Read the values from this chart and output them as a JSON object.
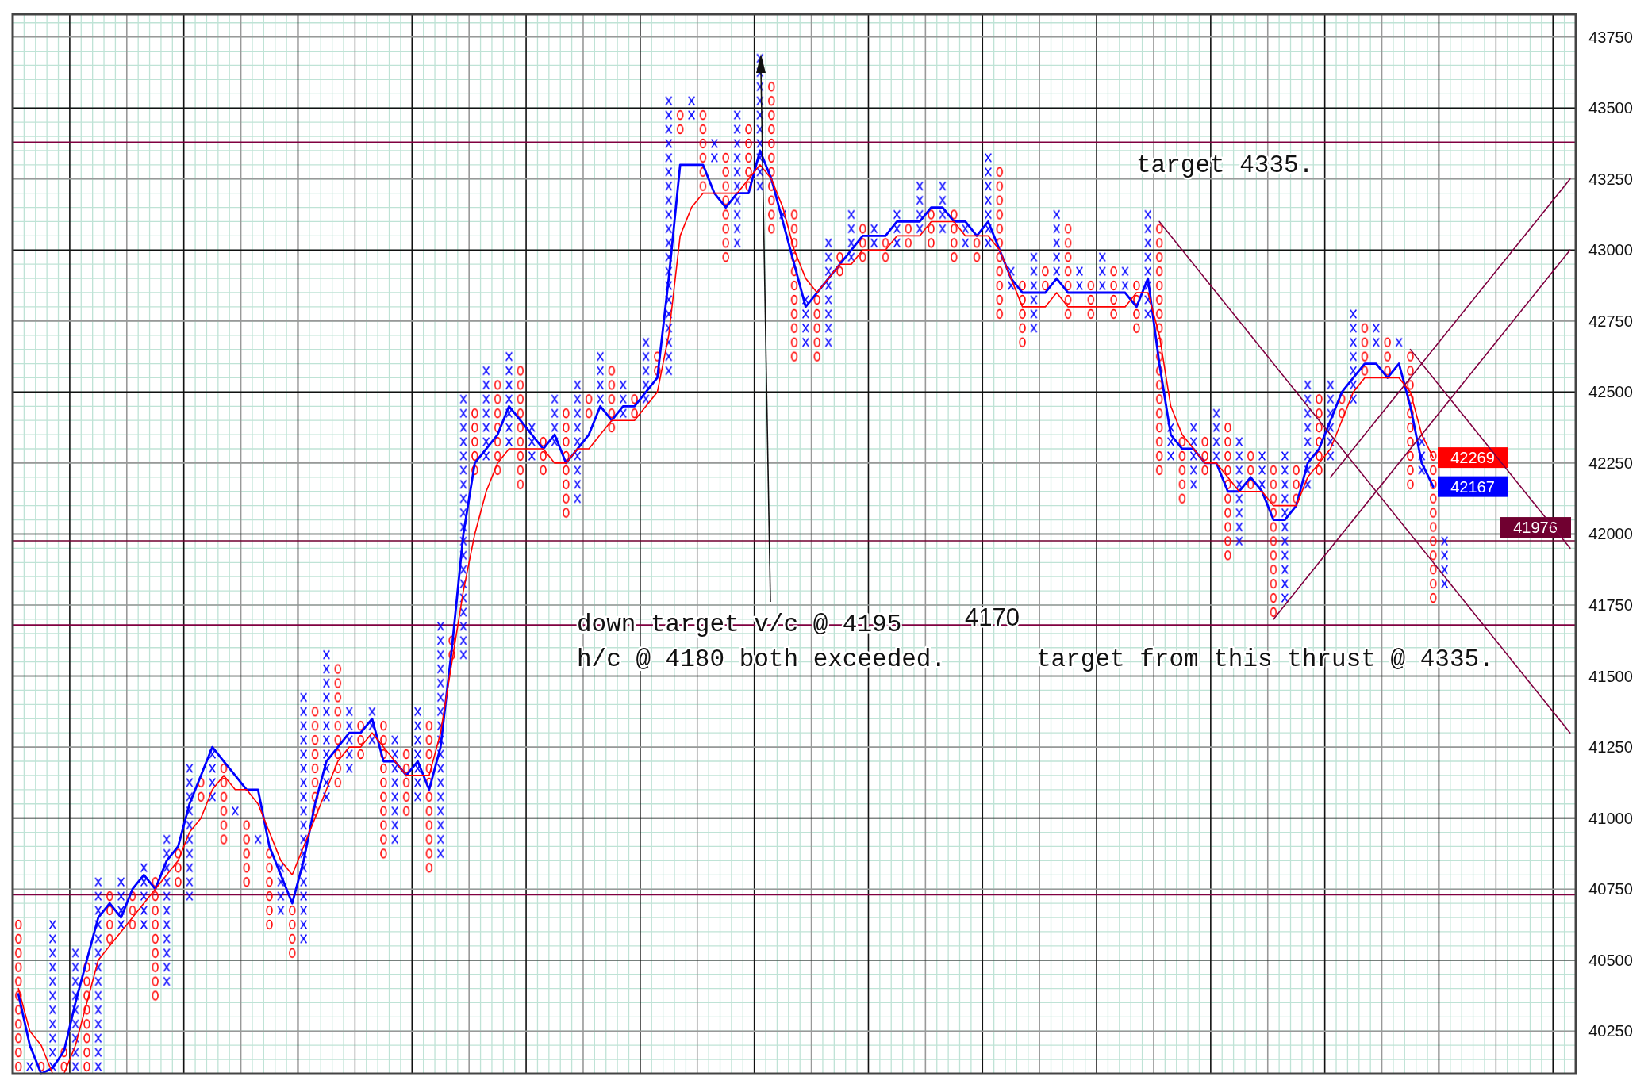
{
  "chart_data": {
    "type": "bar",
    "categories": [
      null,
      null,
      null,
      null,
      null,
      null,
      null,
      null,
      null,
      null,
      null,
      null,
      null,
      null,
      null,
      null,
      null,
      null,
      null,
      null,
      null,
      null,
      null,
      null,
      null,
      null,
      null,
      null,
      null,
      null,
      null,
      null,
      null,
      null,
      null,
      null,
      null,
      null,
      null,
      null,
      null,
      null,
      null,
      null,
      null,
      null,
      null,
      null,
      null,
      null,
      null,
      null,
      null,
      null,
      null,
      null,
      null,
      null,
      null,
      null,
      null,
      null,
      null,
      null,
      null,
      null,
      null,
      null,
      null,
      null,
      null,
      null,
      null,
      null,
      null,
      null,
      null,
      null,
      null,
      null,
      null,
      null,
      null,
      null,
      null,
      null,
      null,
      null,
      null,
      null,
      null,
      null,
      null,
      null,
      null,
      null,
      null,
      null,
      null,
      null,
      null,
      null,
      null,
      null,
      null,
      null,
      null,
      null,
      null,
      null,
      null,
      null,
      null,
      null,
      null,
      null,
      null,
      null,
      null,
      null,
      null,
      null,
      null,
      null,
      null,
      null,
      null,
      null,
      null,
      null,
      null,
      null,
      null,
      null,
      null,
      null,
      null
    ],
    "series": [
      {
        "values": [
          550,
          50,
          50,
          550,
          100,
          450,
          400,
          700,
          200,
          200,
          150,
          250,
          450,
          550,
          150,
          500,
          100,
          200,
          300,
          50,
          250,
          50,
          300,
          200,
          200,
          900,
          400,
          550,
          450,
          250,
          150,
          150,
          500,
          400,
          250,
          350,
          550,
          850,
          100,
          950,
          250,
          350,
          350,
          350,
          450,
          150,
          150,
          200,
          400,
          450,
          100,
          200,
          250,
          150,
          100,
          250,
          100,
          1000,
          100,
          100,
          300,
          100,
          400,
          500,
          250,
          500,
          550,
          50,
          550,
          200,
          250,
          400,
          100,
          200,
          150,
          100,
          100,
          150,
          100,
          200,
          150,
          200,
          200,
          100,
          100,
          350,
          550,
          100,
          250,
          300,
          100,
          250,
          350,
          100,
          150,
          150,
          200,
          100,
          200,
          400,
          900,
          150,
          250,
          250,
          150,
          200,
          500,
          400,
          150,
          150,
          550,
          550,
          150,
          400,
          300,
          300,
          100,
          350,
          200,
          100,
          150,
          50,
          500,
          150,
          550,
          200,
          null,
          null,
          null,
          null,
          null,
          null,
          null,
          null,
          null,
          null,
          null
        ],
        "base": [
          40100,
          40100,
          40100,
          40100,
          40100,
          40100,
          40100,
          40100,
          40550,
          40600,
          40600,
          40600,
          40350,
          40400,
          40750,
          40700,
          41050,
          41050,
          40900,
          41000,
          40750,
          40900,
          40600,
          40650,
          40500,
          40550,
          41000,
          41050,
          41100,
          41150,
          41200,
          41250,
          40850,
          40900,
          41000,
          41050,
          40800,
          40850,
          41550,
          41550,
          42200,
          42250,
          42200,
          42300,
          42150,
          42250,
          42200,
          42300,
          42050,
          42100,
          42400,
          42450,
          42350,
          42400,
          42400,
          42450,
          42550,
          42550,
          43400,
          43450,
          43200,
          43300,
          42950,
          43000,
          43200,
          43200,
          43050,
          43100,
          42600,
          42650,
          42600,
          42650,
          42900,
          42950,
          42950,
          43000,
          42950,
          43000,
          43000,
          43050,
          43000,
          43050,
          42950,
          43000,
          42950,
          43000,
          42750,
          42850,
          42650,
          42700,
          42850,
          42900,
          42750,
          42850,
          42750,
          42850,
          42750,
          42850,
          42700,
          42750,
          42200,
          42250,
          42100,
          42150,
          42200,
          42250,
          41900,
          41950,
          42150,
          42150,
          41700,
          41750,
          42100,
          42150,
          42200,
          42250,
          42400,
          42450,
          42550,
          42650,
          42550,
          42650,
          42150,
          42200,
          41750,
          41800,
          null,
          null,
          null,
          null,
          null,
          null,
          null,
          null,
          null,
          null,
          null
        ],
        "colors": [
          "#ff0000",
          "#0000ff",
          "#ff0000",
          "#0000ff",
          "#ff0000",
          "#0000ff",
          "#ff0000",
          "#0000ff",
          "#ff0000",
          "#0000ff",
          "#ff0000",
          "#0000ff",
          "#ff0000",
          "#0000ff",
          "#ff0000",
          "#0000ff",
          "#ff0000",
          "#0000ff",
          "#ff0000",
          "#0000ff",
          "#ff0000",
          "#0000ff",
          "#ff0000",
          "#0000ff",
          "#ff0000",
          "#0000ff",
          "#ff0000",
          "#0000ff",
          "#ff0000",
          "#0000ff",
          "#ff0000",
          "#0000ff",
          "#ff0000",
          "#0000ff",
          "#ff0000",
          "#0000ff",
          "#ff0000",
          "#0000ff",
          "#ff0000",
          "#0000ff",
          "#ff0000",
          "#0000ff",
          "#ff0000",
          "#0000ff",
          "#ff0000",
          "#0000ff",
          "#ff0000",
          "#0000ff",
          "#ff0000",
          "#0000ff",
          "#ff0000",
          "#0000ff",
          "#ff0000",
          "#0000ff",
          "#ff0000",
          "#0000ff",
          "#ff0000",
          "#0000ff",
          "#ff0000",
          "#0000ff",
          "#ff0000",
          "#0000ff",
          "#ff0000",
          "#0000ff",
          "#ff0000",
          "#0000ff",
          "#ff0000",
          "#0000ff",
          "#ff0000",
          "#0000ff",
          "#ff0000",
          "#0000ff",
          "#ff0000",
          "#0000ff",
          "#ff0000",
          "#0000ff",
          "#ff0000",
          "#0000ff",
          "#ff0000",
          "#0000ff",
          "#ff0000",
          "#0000ff",
          "#ff0000",
          "#0000ff",
          "#ff0000",
          "#0000ff",
          "#ff0000",
          "#0000ff",
          "#ff0000",
          "#0000ff",
          "#ff0000",
          "#0000ff",
          "#ff0000",
          "#0000ff",
          "#ff0000",
          "#0000ff",
          "#ff0000",
          "#0000ff",
          "#ff0000",
          "#0000ff",
          "#ff0000",
          "#0000ff",
          "#ff0000",
          "#0000ff",
          "#ff0000",
          "#0000ff",
          "#ff0000",
          "#0000ff",
          "#ff0000",
          "#0000ff",
          "#ff0000",
          "#0000ff",
          "#ff0000",
          "#0000ff",
          "#ff0000",
          "#0000ff",
          "#ff0000",
          "#0000ff",
          "#ff0000",
          "#0000ff",
          "#ff0000",
          "#0000ff",
          "#ff0000",
          "#0000ff",
          "#ff0000",
          "#0000ff",
          null,
          null,
          null,
          null,
          null,
          null,
          null,
          null,
          null,
          null,
          null
        ]
      },
      {
        "type": "line",
        "color": "#0000ff",
        "values": [
          40380,
          40200,
          40100,
          40120,
          40180,
          40350,
          40500,
          40650,
          40700,
          40650,
          40750,
          40800,
          40750,
          40850,
          40900,
          41050,
          41150,
          41250,
          41200,
          41150,
          41100,
          41100,
          40900,
          40800,
          40700,
          40850,
          41050,
          41200,
          41250,
          41300,
          41300,
          41350,
          41200,
          41200,
          41150,
          41200,
          41100,
          41250,
          41600,
          42000,
          42250,
          42300,
          42350,
          42450,
          42400,
          42350,
          42300,
          42350,
          42250,
          42300,
          42350,
          42450,
          42400,
          42450,
          42450,
          42500,
          42550,
          42900,
          43300,
          43300,
          43300,
          43200,
          43150,
          43200,
          43200,
          43350,
          43250,
          43100,
          42950,
          42800,
          42850,
          42900,
          42950,
          43000,
          43050,
          43050,
          43050,
          43100,
          43100,
          43100,
          43150,
          43150,
          43100,
          43100,
          43050,
          43100,
          43000,
          42900,
          42850,
          42850,
          42850,
          42900,
          42850,
          42850,
          42850,
          42850,
          42850,
          42850,
          42800,
          42900,
          42600,
          42350,
          42300,
          42300,
          42250,
          42250,
          42150,
          42150,
          42200,
          42150,
          42050,
          42050,
          42100,
          42250,
          42300,
          42400,
          42500,
          42550,
          42600,
          42600,
          42550,
          42600,
          42450,
          42250,
          42167,
          null,
          null,
          null,
          null,
          null,
          null,
          null,
          null,
          null,
          null,
          null,
          null
        ],
        "value_labels": [
          null,
          null,
          null,
          null,
          null,
          null,
          null,
          null,
          null,
          null,
          null,
          null,
          null,
          null,
          null,
          null,
          null,
          null,
          null,
          null,
          null,
          null,
          null,
          null,
          null,
          null,
          null,
          null,
          null,
          null,
          null,
          null,
          null,
          null,
          null,
          null,
          null,
          null,
          null,
          null,
          null,
          null,
          null,
          null,
          null,
          null,
          null,
          null,
          null,
          null,
          null,
          null,
          null,
          null,
          null,
          null,
          null,
          null,
          null,
          null,
          null,
          null,
          null,
          null,
          null,
          null,
          null,
          null,
          null,
          null,
          null,
          null,
          null,
          null,
          null,
          null,
          null,
          null,
          null,
          null,
          null,
          null,
          null,
          null,
          null,
          null,
          null,
          null,
          null,
          null,
          null,
          null,
          null,
          null,
          null,
          null,
          null,
          null,
          null,
          null,
          null,
          null,
          null,
          null,
          null,
          null,
          null,
          null,
          null,
          null,
          null,
          null,
          null,
          null,
          null,
          null,
          null,
          null,
          null,
          null,
          null,
          null,
          null,
          null,
          "42167",
          null,
          null,
          null,
          null,
          null,
          null,
          null,
          null,
          null,
          null,
          null,
          null
        ]
      },
      {
        "type": "line",
        "color": "#ff0000",
        "values": [
          40400,
          40250,
          40200,
          40100,
          40100,
          40200,
          40350,
          40500,
          40550,
          40600,
          40650,
          40700,
          40750,
          40800,
          40850,
          40950,
          41000,
          41100,
          41150,
          41100,
          41100,
          41050,
          40950,
          40850,
          40800,
          40900,
          41000,
          41100,
          41200,
          41250,
          41250,
          41300,
          41250,
          41200,
          41150,
          41150,
          41150,
          41300,
          41550,
          41800,
          42000,
          42150,
          42250,
          42300,
          42300,
          42300,
          42300,
          42250,
          42250,
          42300,
          42300,
          42350,
          42400,
          42400,
          42400,
          42450,
          42500,
          42700,
          43050,
          43150,
          43200,
          43200,
          43200,
          43200,
          43250,
          43300,
          43250,
          43150,
          43000,
          42900,
          42850,
          42900,
          42950,
          42950,
          43000,
          43000,
          43000,
          43050,
          43050,
          43050,
          43100,
          43100,
          43100,
          43050,
          43050,
          43050,
          43000,
          42900,
          42800,
          42800,
          42800,
          42850,
          42800,
          42800,
          42800,
          42800,
          42800,
          42800,
          42850,
          42850,
          42700,
          42450,
          42350,
          42300,
          42250,
          42250,
          42200,
          42150,
          42150,
          42150,
          42100,
          42100,
          42100,
          42200,
          42250,
          42300,
          42400,
          42500,
          42550,
          42550,
          42550,
          42550,
          42500,
          42350,
          42269,
          null,
          null,
          null,
          null,
          null,
          null,
          null,
          null,
          null,
          null,
          null,
          null
        ],
        "value_labels": [
          null,
          null,
          null,
          null,
          null,
          null,
          null,
          null,
          null,
          null,
          null,
          null,
          null,
          null,
          null,
          null,
          null,
          null,
          null,
          null,
          null,
          null,
          null,
          null,
          null,
          null,
          null,
          null,
          null,
          null,
          null,
          null,
          null,
          null,
          null,
          null,
          null,
          null,
          null,
          null,
          null,
          null,
          null,
          null,
          null,
          null,
          null,
          null,
          null,
          null,
          null,
          null,
          null,
          null,
          null,
          null,
          null,
          null,
          null,
          null,
          null,
          null,
          null,
          null,
          null,
          null,
          null,
          null,
          null,
          null,
          null,
          null,
          null,
          null,
          null,
          null,
          null,
          null,
          null,
          null,
          null,
          null,
          null,
          null,
          null,
          null,
          null,
          null,
          null,
          null,
          null,
          null,
          null,
          null,
          null,
          null,
          null,
          null,
          null,
          null,
          null,
          null,
          null,
          null,
          null,
          null,
          null,
          null,
          null,
          null,
          null,
          null,
          null,
          null,
          null,
          null,
          null,
          null,
          null,
          null,
          null,
          null,
          null,
          null,
          "42269",
          null,
          null,
          null,
          null,
          null,
          null,
          null,
          null,
          null,
          null,
          null,
          null
        ]
      },
      {
        "type": "line",
        "color": "#800040",
        "values": [
          null,
          null,
          null,
          null,
          null,
          null,
          null,
          null,
          null,
          null,
          null,
          null,
          null,
          null,
          null,
          null,
          null,
          null,
          null,
          null,
          null,
          null,
          null,
          null,
          null,
          null,
          null,
          null,
          null,
          null,
          null,
          null,
          null,
          null,
          null,
          null,
          null,
          null,
          null,
          null,
          null,
          null,
          null,
          null,
          null,
          null,
          null,
          null,
          null,
          null,
          null,
          null,
          null,
          null,
          null,
          null,
          null,
          null,
          null,
          null,
          null,
          null,
          null,
          null,
          null,
          null,
          null,
          null,
          null,
          null,
          null,
          null,
          null,
          null,
          null,
          null,
          null,
          null,
          null,
          null,
          null,
          null,
          null,
          null,
          null,
          null,
          null,
          null,
          null,
          null,
          null,
          null,
          null,
          null,
          null,
          null,
          null,
          null,
          null,
          null,
          43100,
          null,
          null,
          null,
          null,
          null,
          null,
          null,
          null,
          null,
          null,
          null,
          null,
          null,
          null,
          null,
          null,
          null,
          null,
          null,
          null,
          null,
          null,
          null,
          null,
          null,
          null,
          null,
          null,
          null,
          null,
          null,
          null,
          null,
          null,
          null,
          41300
        ]
      },
      {
        "type": "line",
        "color": "#800040",
        "values": [
          null,
          null,
          null,
          null,
          null,
          null,
          null,
          null,
          null,
          null,
          null,
          null,
          null,
          null,
          null,
          null,
          null,
          null,
          null,
          null,
          null,
          null,
          null,
          null,
          null,
          null,
          null,
          null,
          null,
          null,
          null,
          null,
          null,
          null,
          null,
          null,
          null,
          null,
          null,
          null,
          null,
          null,
          null,
          null,
          null,
          null,
          null,
          null,
          null,
          null,
          null,
          null,
          null,
          null,
          null,
          null,
          null,
          null,
          null,
          null,
          null,
          null,
          null,
          null,
          null,
          null,
          null,
          null,
          null,
          null,
          null,
          null,
          null,
          null,
          null,
          null,
          null,
          null,
          null,
          null,
          null,
          null,
          null,
          null,
          null,
          null,
          null,
          null,
          null,
          null,
          null,
          null,
          null,
          null,
          null,
          null,
          null,
          null,
          null,
          null,
          null,
          null,
          null,
          null,
          null,
          null,
          null,
          null,
          null,
          null,
          null,
          null,
          null,
          null,
          null,
          null,
          null,
          null,
          null,
          null,
          null,
          null,
          42650,
          null,
          null,
          null,
          null,
          null,
          null,
          null,
          null,
          null,
          null,
          null,
          null,
          null,
          41950
        ]
      },
      {
        "type": "line",
        "color": "#800040",
        "values": [
          null,
          null,
          null,
          null,
          null,
          null,
          null,
          null,
          null,
          null,
          null,
          null,
          null,
          null,
          null,
          null,
          null,
          null,
          null,
          null,
          null,
          null,
          null,
          null,
          null,
          null,
          null,
          null,
          null,
          null,
          null,
          null,
          null,
          null,
          null,
          null,
          null,
          null,
          null,
          null,
          null,
          null,
          null,
          null,
          null,
          null,
          null,
          null,
          null,
          null,
          null,
          null,
          null,
          null,
          null,
          null,
          null,
          null,
          null,
          null,
          null,
          null,
          null,
          null,
          null,
          null,
          null,
          null,
          null,
          null,
          null,
          null,
          null,
          null,
          null,
          null,
          null,
          null,
          null,
          null,
          null,
          null,
          null,
          null,
          null,
          null,
          null,
          null,
          null,
          null,
          null,
          null,
          null,
          null,
          null,
          null,
          null,
          null,
          null,
          null,
          null,
          null,
          null,
          null,
          null,
          null,
          null,
          null,
          null,
          null,
          41700,
          null,
          null,
          null,
          null,
          null,
          null,
          null,
          null,
          null,
          null,
          null,
          null,
          null,
          null,
          null,
          null,
          null,
          null,
          null,
          null,
          null,
          null,
          null,
          null,
          null,
          43000
        ]
      },
      {
        "type": "line",
        "color": "#800040",
        "values": [
          null,
          null,
          null,
          null,
          null,
          null,
          null,
          null,
          null,
          null,
          null,
          null,
          null,
          null,
          null,
          null,
          null,
          null,
          null,
          null,
          null,
          null,
          null,
          null,
          null,
          null,
          null,
          null,
          null,
          null,
          null,
          null,
          null,
          null,
          null,
          null,
          null,
          null,
          null,
          null,
          null,
          null,
          null,
          null,
          null,
          null,
          null,
          null,
          null,
          null,
          null,
          null,
          null,
          null,
          null,
          null,
          null,
          null,
          null,
          null,
          null,
          null,
          null,
          null,
          null,
          null,
          null,
          null,
          null,
          null,
          null,
          null,
          null,
          null,
          null,
          null,
          null,
          null,
          null,
          null,
          null,
          null,
          null,
          null,
          null,
          null,
          null,
          null,
          null,
          null,
          null,
          null,
          null,
          null,
          null,
          null,
          null,
          null,
          null,
          null,
          null,
          null,
          null,
          null,
          null,
          null,
          null,
          null,
          null,
          null,
          null,
          null,
          null,
          null,
          null,
          42200,
          null,
          null,
          null,
          null,
          null,
          null,
          null,
          null,
          null,
          null,
          null,
          null,
          null,
          null,
          null,
          null,
          null,
          null,
          null,
          null,
          43250
        ]
      }
    ],
    "ylim": [
      40100,
      43830
    ],
    "yticks": [
      40250,
      40500,
      40750,
      41000,
      41250,
      41500,
      41750,
      42000,
      42250,
      42500,
      42750,
      43000,
      43250,
      43500,
      43750
    ],
    "grid": true,
    "tick_labels": "y",
    "ref_lines": [
      {
        "axis": "y",
        "value": 43380,
        "color": "#800040"
      },
      {
        "axis": "y",
        "value": 41976,
        "label": "41976",
        "color": "#700030"
      },
      {
        "axis": "y",
        "value": 41680,
        "color": "#800040"
      },
      {
        "axis": "y",
        "value": 40730,
        "color": "#800040"
      }
    ],
    "annotations": [
      "down target v/c @ 4195",
      "h/c @ 4180 both exceeded.",
      "4170",
      "target 4335.",
      "target from this thrust @ 4335."
    ]
  }
}
